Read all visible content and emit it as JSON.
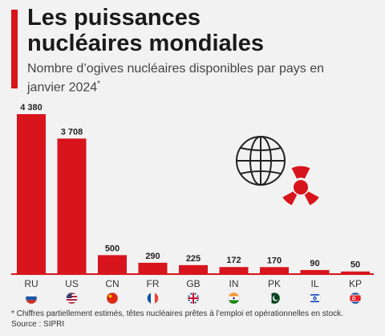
{
  "header": {
    "title_line1": "Les puissances",
    "title_line2": "nucléaires mondiales",
    "subtitle": "Nombre d’ogives nucléaires disponibles par pays en janvier 2024",
    "subtitle_mark": "*"
  },
  "chart_data": {
    "type": "bar",
    "categories": [
      "RU",
      "US",
      "CN",
      "FR",
      "GB",
      "IN",
      "PK",
      "IL",
      "KP"
    ],
    "values": [
      4380,
      3708,
      500,
      290,
      225,
      172,
      170,
      90,
      50
    ],
    "value_labels": [
      "4 380",
      "3 708",
      "500",
      "290",
      "225",
      "172",
      "170",
      "90",
      "50"
    ],
    "title": "Les puissances nucléaires mondiales",
    "xlabel": "",
    "ylabel": "",
    "ylim": [
      0,
      4380
    ],
    "grid": false,
    "bar_color": "#d8141c"
  },
  "flags": [
    "russia-flag-icon",
    "usa-flag-icon",
    "china-flag-icon",
    "france-flag-icon",
    "uk-flag-icon",
    "india-flag-icon",
    "pakistan-flag-icon",
    "israel-flag-icon",
    "north-korea-flag-icon"
  ],
  "illustration": {
    "icon": "globe-radiation-icon",
    "color": "#d8141c"
  },
  "footnote": {
    "note": "* Chiffres partiellement estimés, têtes nucléaires prêtes à l’emploi et opérationnelles en stock.",
    "source": "Source : SIPRI"
  },
  "colors": {
    "accent": "#d8141c",
    "background": "#f2f2f2"
  }
}
